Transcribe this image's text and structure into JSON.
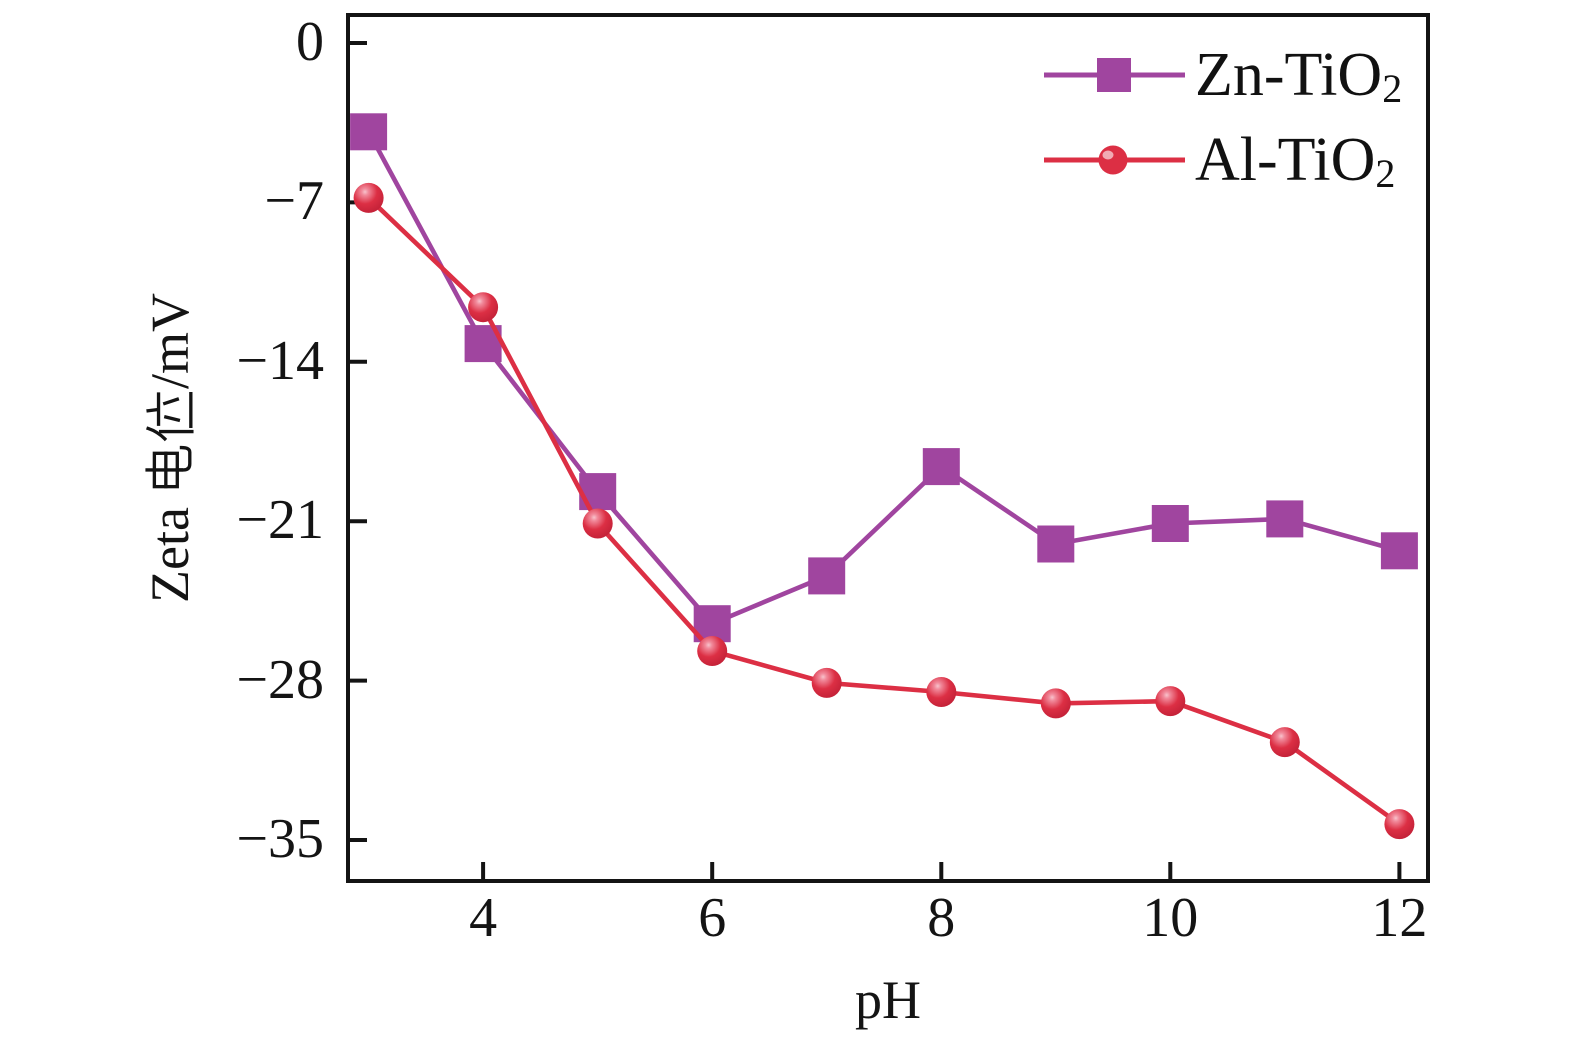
{
  "figure": {
    "background": "#ffffff",
    "axis_color": "#141414"
  },
  "axes": {
    "x_title": "pH",
    "y_title_prefix": "Zeta",
    "y_title_cjk": "电位",
    "y_title_suffix": "/mV",
    "y_title_full": "Zeta 电位/mV"
  },
  "legend": {
    "entries": [
      {
        "label_base": "Zn-TiO",
        "label_sub": "2",
        "label_full": "Zn-TiO2"
      },
      {
        "label_base": "Al-TiO",
        "label_sub": "2",
        "label_full": "Al-TiO2"
      }
    ],
    "position": "top-right"
  },
  "chart_data": {
    "type": "line",
    "title": "",
    "xlabel": "pH",
    "ylabel": "Zeta 电位/mV",
    "x": [
      3,
      4,
      5,
      6,
      7,
      8,
      9,
      10,
      11,
      12
    ],
    "series": [
      {
        "id": "zn-tio2",
        "name": "Zn-TiO2",
        "marker": "square",
        "color": "#A0459F",
        "values": [
          -3.9,
          -13.2,
          -19.7,
          -25.5,
          -23.4,
          -18.6,
          -22.0,
          -21.1,
          -20.9,
          -22.3
        ]
      },
      {
        "id": "al-tio2",
        "name": "Al-TiO2",
        "marker": "ball",
        "color": "#DC2F44",
        "values": [
          -6.8,
          -11.6,
          -21.1,
          -26.7,
          -28.1,
          -28.5,
          -29.0,
          -28.9,
          -30.7,
          -34.3
        ]
      }
    ],
    "xlim": [
      2.82,
      12.25
    ],
    "ylim": [
      -36.8,
      1.23
    ],
    "xticks": [
      4,
      6,
      8,
      10,
      12
    ],
    "yticks": [
      0,
      -7,
      -14,
      -21,
      -28,
      -35
    ],
    "xtick_labels": [
      "4",
      "6",
      "8",
      "10",
      "12"
    ],
    "ytick_labels": [
      "0",
      "−7",
      "−14",
      "−21",
      "−28",
      "−35"
    ],
    "grid": false,
    "legend_position": "top-right"
  }
}
